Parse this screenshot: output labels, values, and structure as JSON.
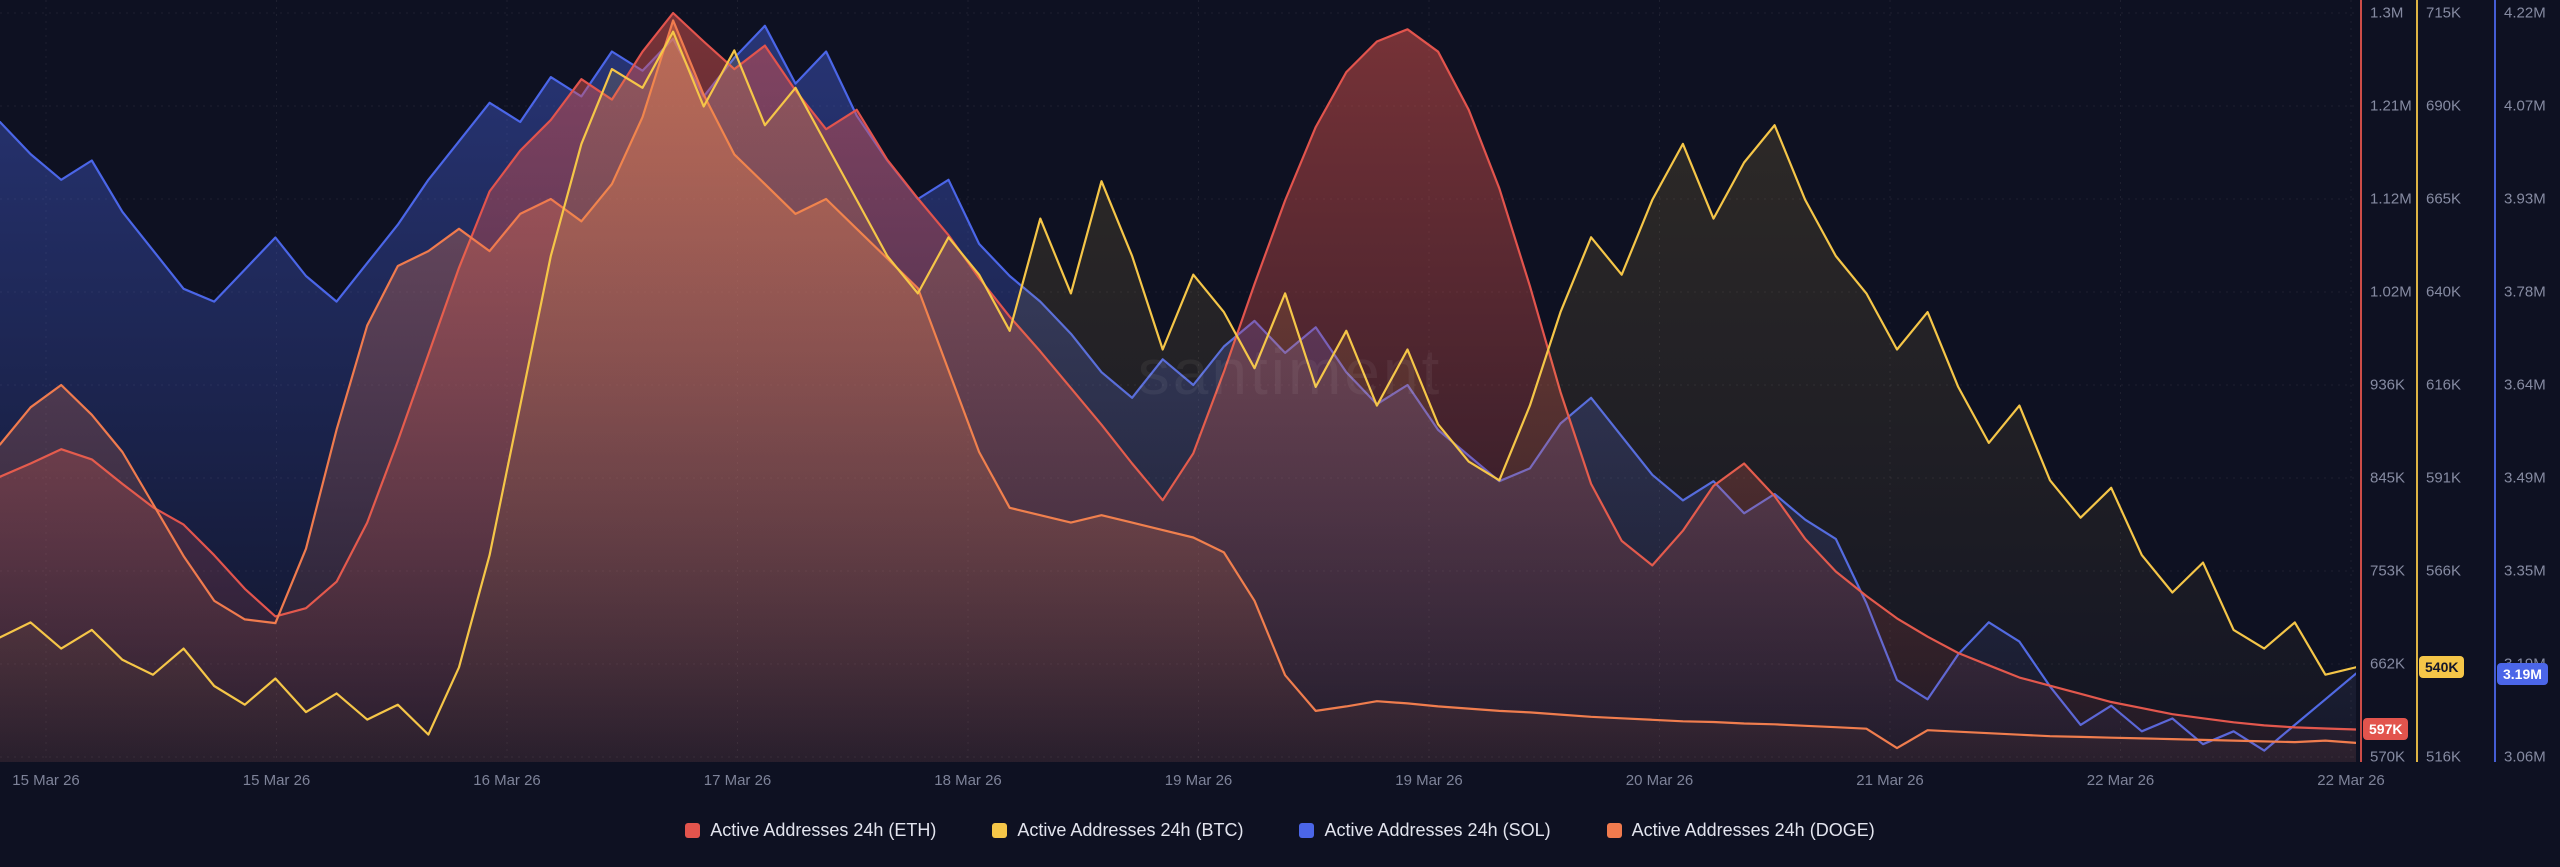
{
  "watermark": "santiment",
  "legend": {
    "items": [
      {
        "series": "eth",
        "label": "Active Addresses 24h (ETH)",
        "color": "#e2544d"
      },
      {
        "series": "btc",
        "label": "Active Addresses 24h (BTC)",
        "color": "#f5c648"
      },
      {
        "series": "sol",
        "label": "Active Addresses 24h (SOL)",
        "color": "#4b66e8"
      },
      {
        "series": "doge",
        "label": "Active Addresses 24h (DOGE)",
        "color": "#f07b4e"
      }
    ]
  },
  "chart_data": {
    "type": "area",
    "title": "",
    "grid": "dotted",
    "legend_position": "bottom-center",
    "x_tick_labels": [
      "15 Mar 26",
      "15 Mar 26",
      "16 Mar 26",
      "17 Mar 26",
      "18 Mar 26",
      "19 Mar 26",
      "19 Mar 26",
      "20 Mar 26",
      "21 Mar 26",
      "22 Mar 26",
      "22 Mar 26"
    ],
    "axes": {
      "eth": {
        "position": "right",
        "color": "#e2544d",
        "unit": "addresses",
        "min": 570,
        "max": 1300,
        "tick_labels": [
          "1.3M",
          "1.21M",
          "1.12M",
          "1.02M",
          "936K",
          "845K",
          "753K",
          "662K",
          "570K"
        ],
        "current_value": 597,
        "current_label": "597K",
        "badge_text_color": "#ffffff"
      },
      "btc": {
        "position": "right",
        "color": "#f5c648",
        "unit": "addresses",
        "min": 516,
        "max": 715,
        "tick_labels": [
          "715K",
          "690K",
          "665K",
          "640K",
          "616K",
          "591K",
          "566K",
          "540K",
          "516K"
        ],
        "current_value": 540,
        "current_label": "540K",
        "badge_text_color": "#14162a"
      },
      "sol": {
        "position": "right",
        "color": "#4b66e8",
        "unit": "addresses",
        "min": 3.06,
        "max": 4.22,
        "tick_labels": [
          "4.22M",
          "4.07M",
          "3.93M",
          "3.78M",
          "3.64M",
          "3.49M",
          "3.35M",
          "3.19M",
          "3.06M"
        ],
        "current_value": 3.19,
        "current_label": "3.19M",
        "badge_text_color": "#ffffff"
      },
      "doge": {
        "position": "hidden",
        "color": "#f07b4e",
        "unit": "normalized plot height (axis not displayed)",
        "min": 0,
        "max": 1,
        "tick_labels": []
      }
    },
    "series": [
      {
        "id": "sol",
        "name": "Active Addresses 24h (SOL)",
        "axis": "sol",
        "color": "#4b66e8",
        "fill_top": 0.42,
        "fill_bottom": 0.03,
        "values": [
          4.05,
          4.0,
          3.96,
          3.99,
          3.91,
          3.85,
          3.79,
          3.77,
          3.82,
          3.87,
          3.81,
          3.77,
          3.83,
          3.89,
          3.96,
          4.02,
          4.08,
          4.05,
          4.12,
          4.09,
          4.16,
          4.13,
          4.18,
          4.09,
          4.15,
          4.2,
          4.11,
          4.16,
          4.06,
          3.99,
          3.93,
          3.96,
          3.86,
          3.81,
          3.77,
          3.72,
          3.66,
          3.62,
          3.68,
          3.64,
          3.7,
          3.74,
          3.69,
          3.73,
          3.66,
          3.61,
          3.64,
          3.57,
          3.53,
          3.49,
          3.51,
          3.58,
          3.62,
          3.56,
          3.5,
          3.46,
          3.49,
          3.44,
          3.47,
          3.43,
          3.4,
          3.3,
          3.18,
          3.15,
          3.22,
          3.27,
          3.24,
          3.17,
          3.11,
          3.14,
          3.1,
          3.12,
          3.08,
          3.1,
          3.07,
          3.11,
          3.15,
          3.19
        ]
      },
      {
        "id": "eth",
        "name": "Active Addresses 24h (ETH)",
        "axis": "eth",
        "color": "#e2544d",
        "fill_top": 0.5,
        "fill_bottom": 0.06,
        "values": [
          845,
          858,
          872,
          862,
          838,
          815,
          798,
          768,
          735,
          708,
          716,
          742,
          800,
          880,
          965,
          1050,
          1125,
          1165,
          1195,
          1235,
          1215,
          1262,
          1300,
          1272,
          1245,
          1268,
          1224,
          1186,
          1205,
          1156,
          1118,
          1082,
          1040,
          1002,
          968,
          932,
          896,
          858,
          822,
          868,
          948,
          1034,
          1116,
          1188,
          1242,
          1272,
          1284,
          1262,
          1205,
          1128,
          1032,
          928,
          838,
          782,
          758,
          792,
          836,
          858,
          826,
          784,
          752,
          728,
          706,
          688,
          672,
          660,
          648,
          640,
          632,
          624,
          618,
          612,
          608,
          604,
          601,
          599,
          598,
          597
        ]
      },
      {
        "id": "doge",
        "name": "Active Addresses 24h (DOGE)",
        "axis": "doge",
        "color": "#f07b4e",
        "fill_top": 0.42,
        "fill_bottom": 0.04,
        "values": [
          0.42,
          0.47,
          0.5,
          0.46,
          0.41,
          0.34,
          0.27,
          0.21,
          0.185,
          0.18,
          0.28,
          0.44,
          0.58,
          0.66,
          0.68,
          0.71,
          0.68,
          0.73,
          0.75,
          0.72,
          0.77,
          0.86,
          0.99,
          0.89,
          0.81,
          0.77,
          0.73,
          0.75,
          0.71,
          0.67,
          0.63,
          0.52,
          0.41,
          0.335,
          0.325,
          0.315,
          0.325,
          0.315,
          0.305,
          0.295,
          0.275,
          0.21,
          0.11,
          0.062,
          0.068,
          0.075,
          0.072,
          0.068,
          0.065,
          0.062,
          0.06,
          0.057,
          0.054,
          0.052,
          0.05,
          0.048,
          0.047,
          0.045,
          0.044,
          0.042,
          0.04,
          0.038,
          0.012,
          0.036,
          0.034,
          0.032,
          0.03,
          0.028,
          0.027,
          0.026,
          0.025,
          0.024,
          0.023,
          0.022,
          0.021,
          0.02,
          0.022,
          0.019
        ]
      },
      {
        "id": "btc",
        "name": "Active Addresses 24h (BTC)",
        "axis": "btc",
        "color": "#f5c648",
        "fill_top": 0.15,
        "fill_bottom": 0.02,
        "values": [
          548,
          552,
          545,
          550,
          542,
          538,
          545,
          535,
          530,
          537,
          528,
          533,
          526,
          530,
          522,
          540,
          570,
          610,
          650,
          680,
          700,
          695,
          710,
          690,
          705,
          685,
          695,
          680,
          665,
          650,
          640,
          655,
          645,
          630,
          660,
          640,
          670,
          650,
          625,
          645,
          635,
          620,
          640,
          615,
          630,
          610,
          625,
          605,
          595,
          590,
          610,
          635,
          655,
          645,
          665,
          680,
          660,
          675,
          685,
          665,
          650,
          640,
          625,
          635,
          615,
          600,
          610,
          590,
          580,
          588,
          570,
          560,
          568,
          550,
          545,
          552,
          538,
          540
        ]
      }
    ]
  }
}
